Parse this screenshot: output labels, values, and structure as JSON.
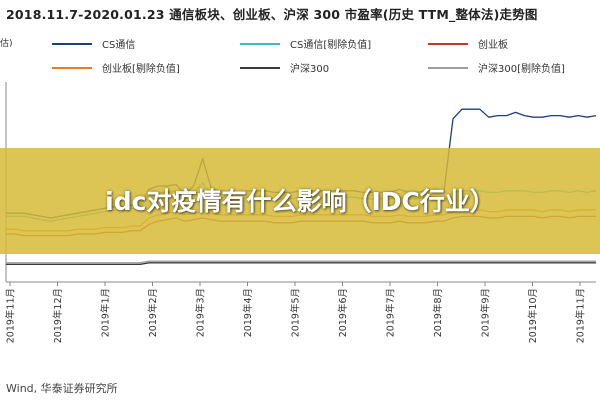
{
  "header": {
    "title": "2018.11.7-2020.01.23 通信板块、创业板、沪深 300 市盈率(历史 TTM_整体法)走势图",
    "y_axis_fragment": "估)"
  },
  "overlay": {
    "text": "idc对疫情有什么影响（IDC行业）"
  },
  "footer": {
    "source": "Wind, 华泰证券研究所"
  },
  "chart_data": {
    "type": "line",
    "x_tick_labels": [
      "2019年11月",
      "2019年12月",
      "2019年1月",
      "2019年2月",
      "2019年3月",
      "2019年4月",
      "2019年5月",
      "2019年6月",
      "2019年7月",
      "2019年8月",
      "2019年9月",
      "2019年10月",
      "2019年11月"
    ],
    "series": [
      {
        "name": "CS通信",
        "color": "#1f3f7a",
        "values": [
          43,
          43,
          43,
          42,
          41,
          40,
          41,
          42,
          43,
          44,
          45,
          46,
          47,
          47,
          48,
          48,
          58,
          60,
          60,
          61,
          55,
          60,
          77,
          58,
          57,
          56,
          56,
          57,
          57,
          57,
          56,
          56,
          56,
          57,
          57,
          57,
          57,
          57,
          57,
          57,
          56,
          56,
          56,
          56,
          58,
          56,
          56,
          57,
          58,
          57,
          102,
          108,
          108,
          108,
          103,
          104,
          104,
          106,
          104,
          103,
          103,
          104,
          104,
          103,
          104,
          103,
          104
        ]
      },
      {
        "name": "CS通信[剔除负值]",
        "color": "#3fb7c4",
        "values": [
          41,
          41,
          41,
          40,
          39,
          38,
          39,
          40,
          41,
          42,
          43,
          44,
          45,
          45,
          46,
          46,
          55,
          56,
          56,
          57,
          52,
          56,
          62,
          54,
          53,
          52,
          52,
          53,
          53,
          53,
          52,
          52,
          52,
          53,
          53,
          53,
          53,
          53,
          53,
          53,
          52,
          52,
          52,
          52,
          53,
          52,
          52,
          53,
          53,
          52,
          56,
          57,
          57,
          57,
          56,
          56,
          57,
          57,
          57,
          56,
          56,
          57,
          57,
          56,
          57,
          56,
          57
        ]
      },
      {
        "name": "创业板",
        "color": "#c0392b",
        "values": [
          30,
          30,
          29,
          29,
          29,
          29,
          29,
          29,
          30,
          30,
          30,
          31,
          31,
          31,
          32,
          32,
          36,
          38,
          39,
          40,
          38,
          39,
          40,
          39,
          38,
          38,
          38,
          38,
          38,
          38,
          37,
          37,
          37,
          38,
          38,
          38,
          38,
          38,
          38,
          38,
          38,
          37,
          37,
          37,
          38,
          37,
          37,
          37,
          38,
          38,
          40,
          41,
          41,
          41,
          40,
          40,
          41,
          41,
          41,
          41,
          40,
          41,
          41,
          40,
          41,
          41,
          41
        ]
      },
      {
        "name": "创业板[剔除负值]",
        "color": "#e67e22",
        "values": [
          33,
          33,
          32,
          32,
          32,
          32,
          32,
          32,
          33,
          33,
          33,
          34,
          34,
          34,
          35,
          35,
          40,
          42,
          43,
          44,
          42,
          43,
          44,
          43,
          42,
          42,
          42,
          42,
          42,
          42,
          41,
          41,
          41,
          42,
          42,
          42,
          42,
          42,
          42,
          42,
          42,
          41,
          41,
          41,
          42,
          41,
          41,
          41,
          42,
          42,
          44,
          45,
          45,
          45,
          44,
          44,
          45,
          45,
          45,
          45,
          44,
          45,
          45,
          44,
          45,
          45,
          45
        ]
      },
      {
        "name": "沪深300",
        "color": "#3a3a3a",
        "values": [
          11,
          11,
          11,
          11,
          11,
          11,
          11,
          11,
          11,
          11,
          11,
          11,
          11,
          11,
          11,
          11,
          12,
          12,
          12,
          12,
          12,
          12,
          12,
          12,
          12,
          12,
          12,
          12,
          12,
          12,
          12,
          12,
          12,
          12,
          12,
          12,
          12,
          12,
          12,
          12,
          12,
          12,
          12,
          12,
          12,
          12,
          12,
          12,
          12,
          12,
          12,
          12,
          12,
          12,
          12,
          12,
          12,
          12,
          12,
          12,
          12,
          12,
          12,
          12,
          12,
          12,
          12
        ]
      },
      {
        "name": "沪深300[剔除负值]",
        "color": "#9e9e9e",
        "values": [
          12,
          12,
          12,
          12,
          12,
          12,
          12,
          12,
          12,
          12,
          12,
          12,
          12,
          12,
          12,
          12,
          13,
          13,
          13,
          13,
          13,
          13,
          13,
          13,
          13,
          13,
          13,
          13,
          13,
          13,
          13,
          13,
          13,
          13,
          13,
          13,
          13,
          13,
          13,
          13,
          13,
          13,
          13,
          13,
          13,
          13,
          13,
          13,
          13,
          13,
          13,
          13,
          13,
          13,
          13,
          13,
          13,
          13,
          13,
          13,
          13,
          13,
          13,
          13,
          13,
          13,
          13
        ]
      }
    ],
    "ylim": [
      0,
      125
    ],
    "grid": false,
    "legend_position": "top"
  }
}
